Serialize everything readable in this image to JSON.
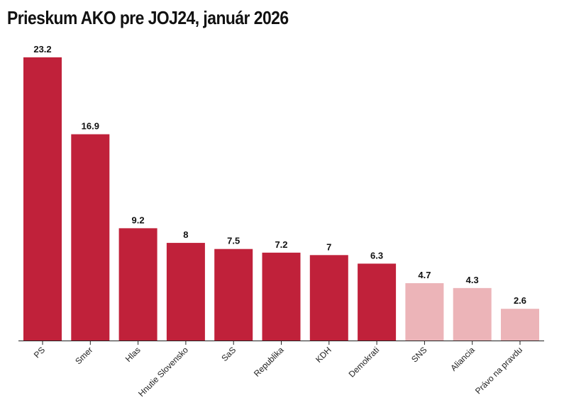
{
  "chart_data": {
    "type": "bar",
    "title": "Prieskum AKO pre JOJ24, január 2026",
    "xlabel": "",
    "ylabel": "",
    "ylim": [
      0,
      23.2
    ],
    "grid": false,
    "legend": null,
    "categories": [
      "PS",
      "Smer",
      "Hlas",
      "Hnutie Slovensko",
      "SaS",
      "Republika",
      "KDH",
      "Demokrati",
      "SNS",
      "Aliancia",
      "Právo na pravdu"
    ],
    "values": [
      23.2,
      16.9,
      9.2,
      8,
      7.5,
      7.2,
      7,
      6.3,
      4.7,
      4.3,
      2.6
    ],
    "data_labels": [
      "23.2",
      "16.9",
      "9.2",
      "8",
      "7.5",
      "7.2",
      "7",
      "6.3",
      "4.7",
      "4.3",
      "2.6"
    ],
    "threshold": 5,
    "colors": {
      "above_threshold": "#c0213a",
      "below_threshold": "#ecb4b8",
      "axis": "#222222"
    }
  }
}
